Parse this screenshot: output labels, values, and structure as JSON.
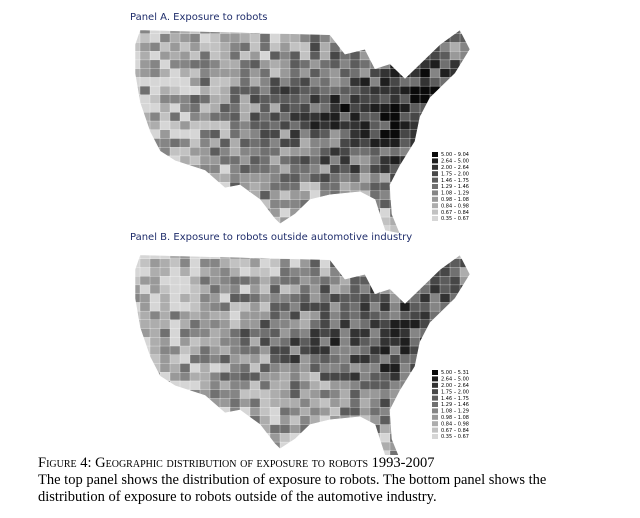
{
  "panels": [
    {
      "title": "Panel A. Exposure to robots",
      "legend": {
        "labels": [
          "5.00 – 9.04",
          "2.64 – 5.00",
          "2.00 – 2.64",
          "1.75 – 2.00",
          "1.46 – 1.75",
          "1.29 – 1.46",
          "1.08 – 1.29",
          "0.98 – 1.08",
          "0.84 – 0.98",
          "0.67 – 0.84",
          "0.35 – 0.67"
        ],
        "colors": [
          "#0a0a0a",
          "#1e1e1e",
          "#333333",
          "#474747",
          "#5c5c5c",
          "#707070",
          "#858585",
          "#999999",
          "#adadad",
          "#c2c2c2",
          "#d6d6d6"
        ]
      }
    },
    {
      "title": "Panel B. Exposure to robots outside automotive industry",
      "legend": {
        "labels": [
          "5.00 – 5.31",
          "2.64 – 5.00",
          "2.00 – 2.64",
          "1.75 – 2.00",
          "1.46 – 1.75",
          "1.29 – 1.46",
          "1.08 – 1.29",
          "0.98 – 1.08",
          "0.84 – 0.98",
          "0.67 – 0.84",
          "0.35 – 0.67"
        ],
        "colors": [
          "#0a0a0a",
          "#1e1e1e",
          "#333333",
          "#474747",
          "#5c5c5c",
          "#707070",
          "#858585",
          "#999999",
          "#adadad",
          "#c2c2c2",
          "#d6d6d6"
        ]
      }
    }
  ],
  "caption": {
    "label": "Figure 4:",
    "title": "Geographic distribution of exposure to robots 1993-2007",
    "text": "The top panel shows the distribution of exposure to robots. The bottom panel shows the distribution of exposure to robots outside of the automotive industry."
  }
}
